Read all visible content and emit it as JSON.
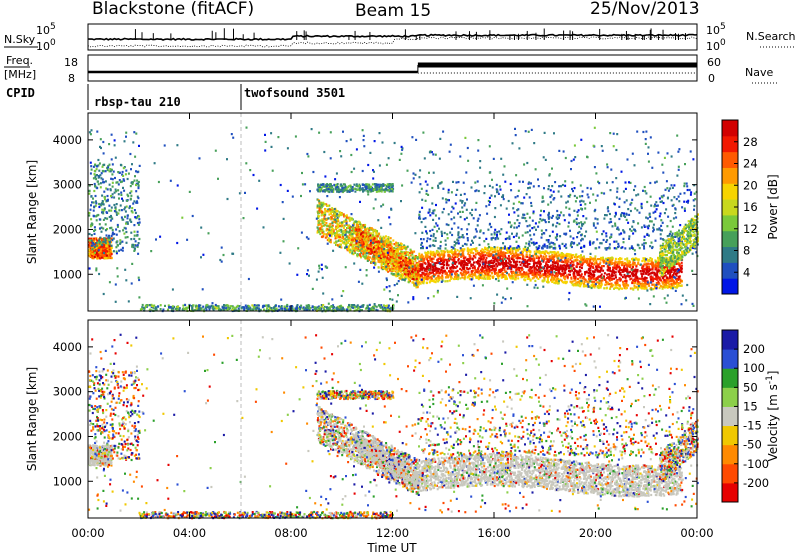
{
  "header": {
    "station": "Blackstone (fitACF)",
    "beam": "Beam 15",
    "date": "25/Nov/2013"
  },
  "panels": {
    "nsky_label": "N.Sky",
    "nsearch_label": "N.Search",
    "nave_label": "Nave",
    "freq_label_1": "Freq.",
    "freq_label_2": "[MHz]",
    "cpid_label": "CPID",
    "nsky_ticks": [
      "10^5",
      "10^0"
    ],
    "nsearch_ticks": [
      "10^5",
      "10^0"
    ],
    "freq_ticks": [
      "18",
      "8"
    ],
    "nave_ticks": [
      "60",
      "0"
    ],
    "cpid_segments": [
      {
        "label": "rbsp-tau 210",
        "start": 0,
        "end": 6
      },
      {
        "label": "twofsound 3501",
        "start": 6,
        "end": 24
      }
    ]
  },
  "chart_data": [
    {
      "type": "heatmap",
      "name": "Power",
      "xlabel": "Time UT",
      "ylabel": "Slant Range [km]",
      "xlim": [
        0,
        24
      ],
      "ylim": [
        180,
        4600
      ],
      "x_ticks": [
        "00:00",
        "04:00",
        "08:00",
        "12:00",
        "16:00",
        "20:00",
        "00:00"
      ],
      "y_ticks": [
        1000,
        2000,
        3000,
        4000
      ],
      "colorbar": {
        "label": "Power [dB]",
        "ticks": [
          4,
          8,
          12,
          16,
          20,
          24,
          28
        ],
        "range": [
          0,
          32
        ],
        "colors": [
          "#0016e6",
          "#1f4fbf",
          "#2f7a86",
          "#47a05a",
          "#7ac93a",
          "#c8d81e",
          "#f7d400",
          "#ff9a00",
          "#ff5a00",
          "#f21800",
          "#d20000"
        ]
      },
      "features": [
        {
          "description": "echo band",
          "t_start": 0,
          "t_end": 0.9,
          "range_km": [
            1450,
            1800
          ]
        },
        {
          "description": "echo band",
          "t_start": 9.0,
          "t_end": 13.0,
          "range_km": [
            900,
            2500
          ]
        },
        {
          "description": "main echo band",
          "t_start": 13.0,
          "t_end": 23.4,
          "range_km": [
            850,
            1600
          ]
        },
        {
          "description": "ground/near range",
          "t_start": 2.0,
          "t_end": 12.0,
          "range_km": [
            180,
            350
          ]
        }
      ]
    },
    {
      "type": "heatmap",
      "name": "Velocity",
      "xlabel": "Time UT",
      "ylabel": "Slant Range [km]",
      "xlim": [
        0,
        24
      ],
      "ylim": [
        180,
        4600
      ],
      "x_ticks": [
        "00:00",
        "04:00",
        "08:00",
        "12:00",
        "16:00",
        "20:00",
        "00:00"
      ],
      "y_ticks": [
        1000,
        2000,
        3000,
        4000
      ],
      "colorbar": {
        "label": "Velocity [m s^-1]",
        "ticks": [
          200,
          100,
          50,
          15,
          -15,
          -50,
          -100,
          -200
        ],
        "colors": [
          "#1a1aa6",
          "#2a4fd4",
          "#2aa02a",
          "#8ccf4a",
          "#c8c8be",
          "#f0c800",
          "#ff8a00",
          "#ff4a00",
          "#e60000"
        ]
      }
    }
  ]
}
